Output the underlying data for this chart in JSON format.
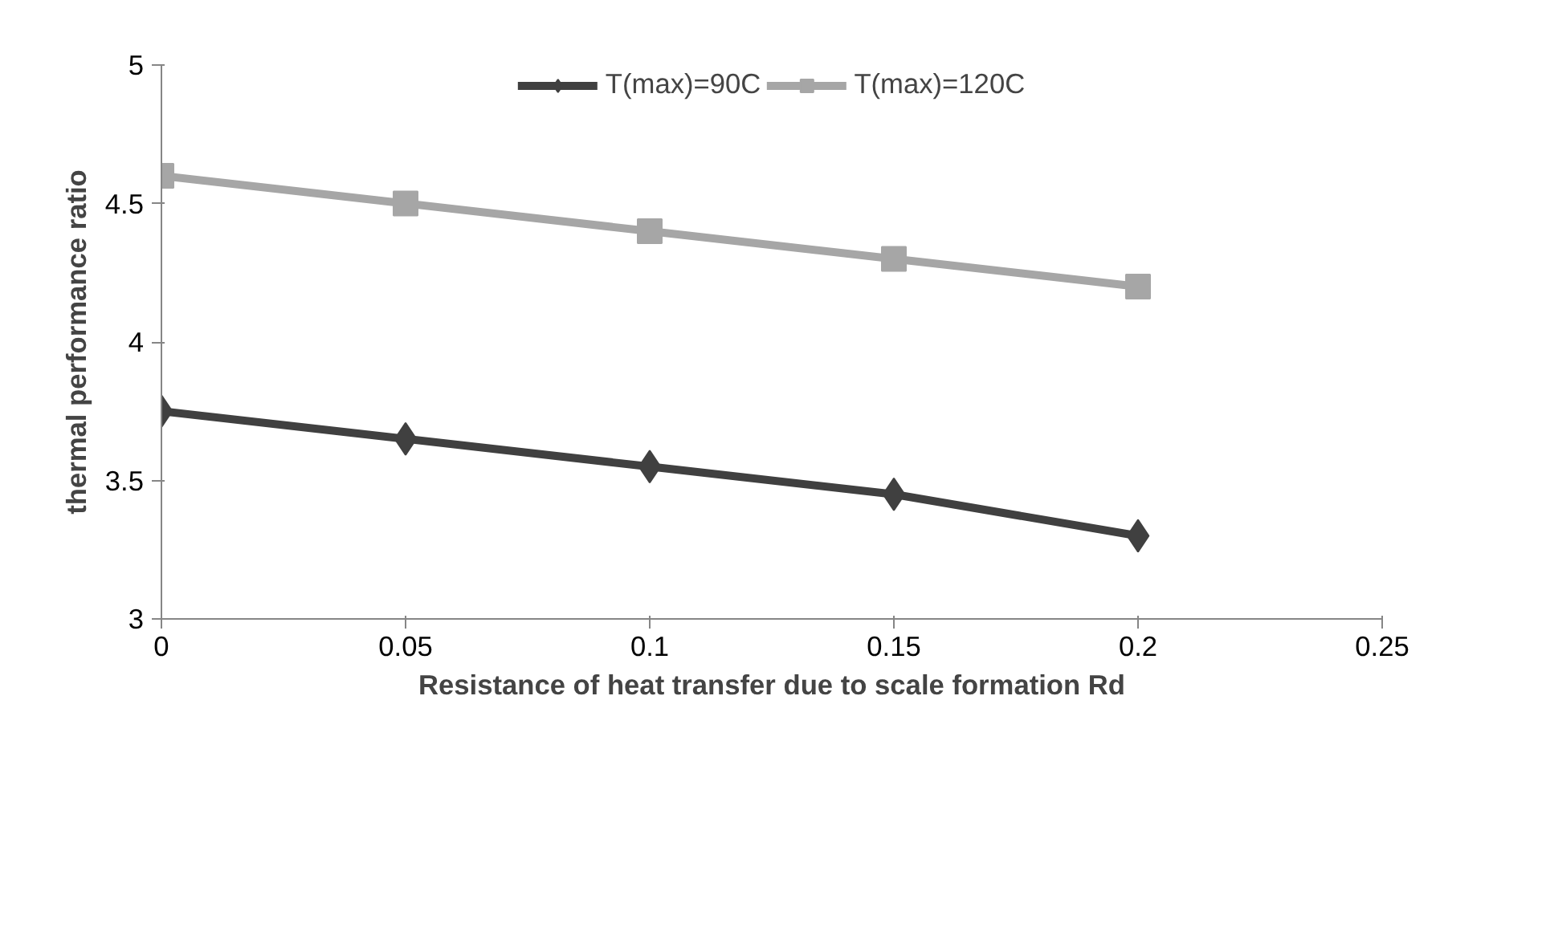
{
  "chart_data": {
    "type": "line",
    "xlabel": "Resistance of heat transfer due to scale formation Rd",
    "ylabel": "thermal performance ratio",
    "x": [
      0,
      0.05,
      0.1,
      0.15,
      0.2
    ],
    "series": [
      {
        "name": "T(max)=90C",
        "color": "#404040",
        "marker": "diamond",
        "values": [
          3.75,
          3.65,
          3.55,
          3.45,
          3.3
        ]
      },
      {
        "name": "T(max)=120C",
        "color": "#a6a6a6",
        "marker": "square",
        "values": [
          4.6,
          4.5,
          4.4,
          4.3,
          4.2
        ]
      }
    ],
    "xlim": [
      0,
      0.25
    ],
    "xticks": [
      0,
      0.05,
      0.1,
      0.15,
      0.2,
      0.25
    ],
    "ylim": [
      3,
      5
    ],
    "yticks": [
      3,
      3.5,
      4,
      4.5,
      5
    ],
    "grid": false,
    "legend": "top",
    "line_style": "solid"
  }
}
